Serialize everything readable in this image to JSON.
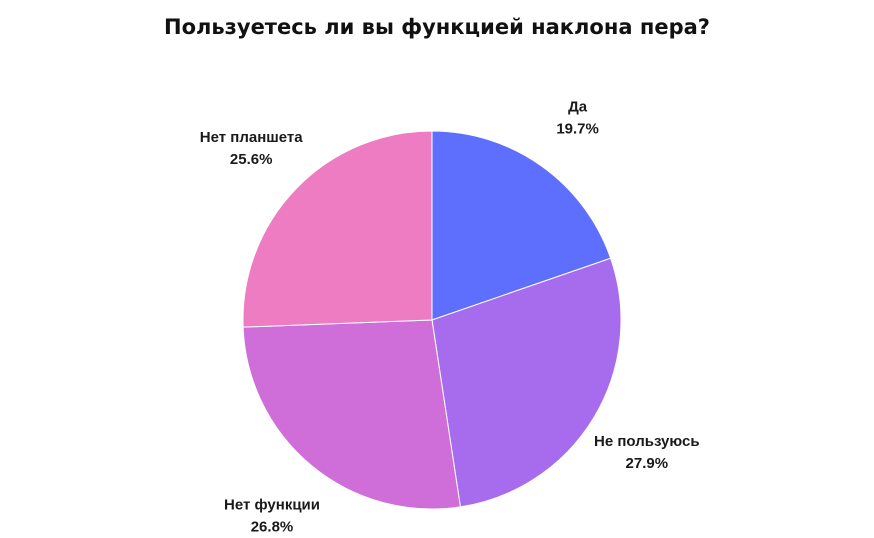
{
  "chart_data": {
    "type": "pie",
    "title": "Пользуетесь ли вы функцией наклона пера?",
    "slices": [
      {
        "label": "Да",
        "value": 19.7,
        "value_label": "19.7%",
        "color": "#5e6ffd"
      },
      {
        "label": "Не пользуюсь",
        "value": 27.9,
        "value_label": "27.9%",
        "color": "#a66ced"
      },
      {
        "label": "Нет функции",
        "value": 26.8,
        "value_label": "26.8%",
        "color": "#cf6dd9"
      },
      {
        "label": "Нет планшета",
        "value": 25.6,
        "value_label": "25.6%",
        "color": "#ed7cc3"
      }
    ],
    "start_angle": "12 o'clock",
    "direction": "clockwise",
    "legend": "none"
  }
}
